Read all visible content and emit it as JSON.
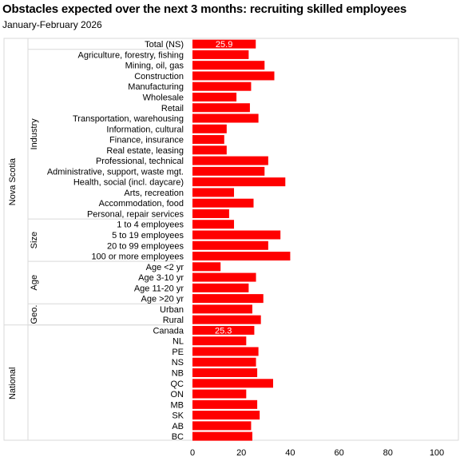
{
  "chart_data": {
    "type": "bar",
    "orientation": "horizontal",
    "title": "Obstacles expected over the next 3 months: recruiting skilled employees",
    "subtitle": "January-February  2026",
    "xlim": [
      0,
      100
    ],
    "x_ticks": [
      "0",
      "20",
      "40",
      "60",
      "80",
      "100"
    ],
    "grid": false,
    "bar_color": "#ff0000",
    "groups": [
      {
        "label": "Nova Scotia",
        "subgroup": "",
        "categories": [
          "Total (NS)"
        ],
        "values": [
          25.9
        ],
        "data_labels": [
          "25.9"
        ]
      },
      {
        "label": "Nova Scotia",
        "subgroup": "Industry",
        "categories": [
          "Agriculture, forestry, fishing",
          "Mining, oil, gas",
          "Construction",
          "Manufacturing",
          "Wholesale",
          "Retail",
          "Transportation, warehousing",
          "Information, cultural",
          "Finance, insurance",
          "Real estate, leasing",
          "Professional, technical",
          "Administrative, support, waste mgt.",
          "Health, social (incl. daycare)",
          "Arts, recreation",
          "Accommodation, food",
          "Personal, repair services"
        ],
        "values": [
          23,
          29.5,
          33.5,
          24,
          18,
          23.5,
          27,
          14,
          13,
          14,
          31,
          29.5,
          38,
          17,
          25,
          15
        ],
        "data_labels": []
      },
      {
        "label": "Nova Scotia",
        "subgroup": "Size",
        "categories": [
          "1 to 4 employees",
          "5 to 19 employees",
          "20 to 99 employees",
          "100 or more employees"
        ],
        "values": [
          17,
          36,
          31,
          40
        ],
        "data_labels": []
      },
      {
        "label": "Nova Scotia",
        "subgroup": "Age",
        "categories": [
          "Age <2 yr",
          "Age 3-10 yr",
          "Age 11-20 yr",
          "Age >20 yr"
        ],
        "values": [
          11.5,
          26,
          23,
          29
        ],
        "data_labels": []
      },
      {
        "label": "Nova Scotia",
        "subgroup": "Geo.",
        "categories": [
          "Urban",
          "Rural"
        ],
        "values": [
          24.5,
          28
        ],
        "data_labels": []
      },
      {
        "label": "National",
        "subgroup": "",
        "categories": [
          "Canada",
          "NL",
          "PE",
          "NS",
          "NB",
          "QC",
          "ON",
          "MB",
          "SK",
          "AB",
          "BC"
        ],
        "values": [
          25.3,
          22,
          27,
          26,
          26.5,
          33,
          22,
          26.5,
          27.5,
          24,
          24.5
        ],
        "data_labels": [
          "25.3"
        ]
      }
    ],
    "outer_groups": [
      "Nova Scotia",
      "National"
    ],
    "inner_groups": [
      "Industry",
      "Size",
      "Age",
      "Geo."
    ]
  }
}
